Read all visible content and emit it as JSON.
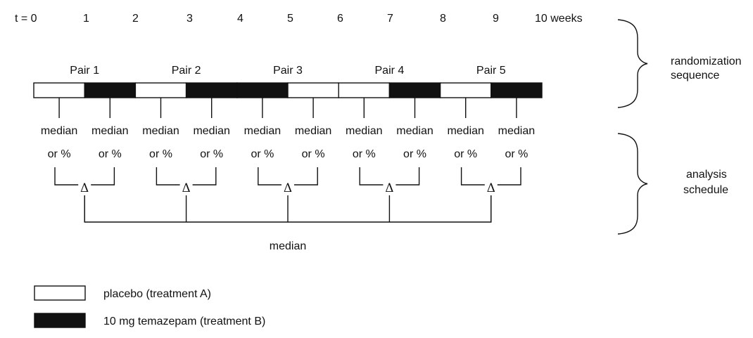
{
  "timeline": {
    "ticks": [
      "t = 0",
      "1",
      "2",
      "3",
      "4",
      "5",
      "6",
      "7",
      "8",
      "9",
      "10 weeks"
    ]
  },
  "pairs": [
    {
      "label": "Pair 1",
      "sequence": [
        "A",
        "B"
      ]
    },
    {
      "label": "Pair 2",
      "sequence": [
        "A",
        "B"
      ]
    },
    {
      "label": "Pair 3",
      "sequence": [
        "B",
        "A"
      ]
    },
    {
      "label": "Pair 4",
      "sequence": [
        "A",
        "B"
      ]
    },
    {
      "label": "Pair 5",
      "sequence": [
        "A",
        "B"
      ]
    }
  ],
  "analysis": {
    "cell_line1": "median",
    "cell_line2": "or %",
    "difference_symbol": "Δ",
    "overall_label": "median"
  },
  "braces": {
    "randomization": [
      "randomization",
      "sequence"
    ],
    "analysis": [
      "analysis",
      "schedule"
    ]
  },
  "legend": [
    {
      "treatment": "A",
      "label": "placebo (treatment A)",
      "color": "#ffffff"
    },
    {
      "treatment": "B",
      "label": "10 mg temazepam (treatment B)",
      "color": "#111111"
    }
  ]
}
